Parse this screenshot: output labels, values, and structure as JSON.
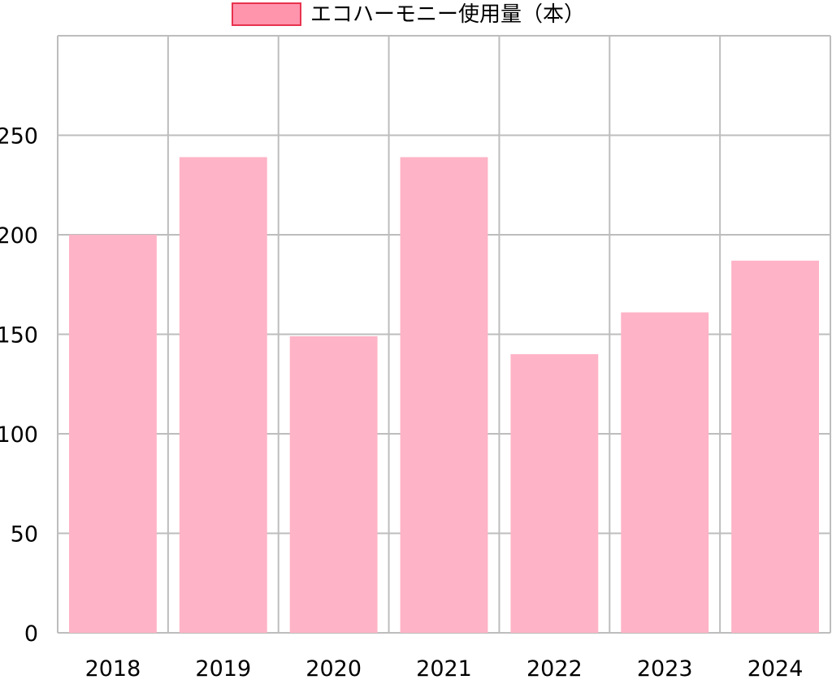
{
  "chart_data": {
    "type": "bar",
    "categories": [
      "2018",
      "2019",
      "2020",
      "2021",
      "2022",
      "2023",
      "2024"
    ],
    "series": [
      {
        "name": "エコハーモニー使用量（本）",
        "values": [
          200,
          239,
          149,
          239,
          140,
          161,
          187
        ],
        "color": "#ffb3c6",
        "legend_fill": "#ff94ad",
        "legend_border": "#e8334f"
      }
    ],
    "ylim": [
      0,
      300
    ],
    "yticks": [
      "0",
      "50",
      "100",
      "150",
      "200",
      "250"
    ],
    "grid": true,
    "grid_color": "#bdbdbd",
    "legend_position": "top-center"
  }
}
